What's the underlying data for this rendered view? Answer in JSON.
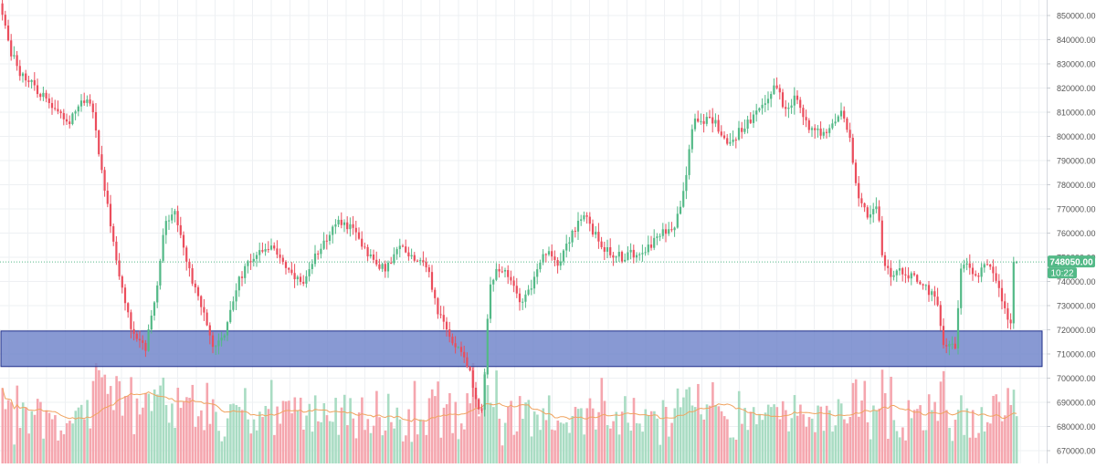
{
  "chart_data": {
    "type": "candlestick",
    "y_axis": {
      "position": "right",
      "ticks": [
        "850000.00",
        "840000.00",
        "830000.00",
        "820000.00",
        "810000.00",
        "800000.00",
        "790000.00",
        "780000.00",
        "770000.00",
        "760000.00",
        "750000.00",
        "740000.00",
        "730000.00",
        "720000.00",
        "710000.00",
        "700000.00",
        "690000.00",
        "680000.00",
        "670000.00"
      ],
      "ylim": [
        665000,
        855000
      ]
    },
    "grid": true,
    "current_price": {
      "value": 748050,
      "label": "748050.00",
      "countdown": "10:22"
    },
    "support_zone": {
      "low": 704800,
      "high": 719500
    },
    "colors": {
      "up": "#53b987",
      "down": "#eb4d5c",
      "volume_up": "#a9dcc3",
      "volume_down": "#f5a6ae",
      "volume_ma": "#f0a35f",
      "zone_fill": "#6e82c9",
      "zone_stroke": "#1f2f8a",
      "price_line": "#53b987",
      "grid": "#eef0f3",
      "axis_text": "#555555"
    },
    "anchors": [
      [
        0,
        855000
      ],
      [
        8,
        838000
      ],
      [
        20,
        826000
      ],
      [
        35,
        821000
      ],
      [
        50,
        815000
      ],
      [
        72,
        805000
      ],
      [
        88,
        815000
      ],
      [
        100,
        812000
      ],
      [
        115,
        775000
      ],
      [
        130,
        740000
      ],
      [
        145,
        718000
      ],
      [
        158,
        712000
      ],
      [
        170,
        735000
      ],
      [
        180,
        765000
      ],
      [
        190,
        770000
      ],
      [
        205,
        745000
      ],
      [
        220,
        728000
      ],
      [
        232,
        713000
      ],
      [
        245,
        719000
      ],
      [
        260,
        740000
      ],
      [
        275,
        750000
      ],
      [
        290,
        755000
      ],
      [
        305,
        751000
      ],
      [
        318,
        742000
      ],
      [
        332,
        738000
      ],
      [
        348,
        754000
      ],
      [
        360,
        760000
      ],
      [
        372,
        765000
      ],
      [
        388,
        760000
      ],
      [
        402,
        752000
      ],
      [
        414,
        745000
      ],
      [
        426,
        747000
      ],
      [
        438,
        755000
      ],
      [
        452,
        750000
      ],
      [
        465,
        748000
      ],
      [
        478,
        728000
      ],
      [
        492,
        716000
      ],
      [
        505,
        712000
      ],
      [
        515,
        700000
      ],
      [
        522,
        685000
      ],
      [
        528,
        690000
      ],
      [
        534,
        735000
      ],
      [
        545,
        746000
      ],
      [
        558,
        740000
      ],
      [
        570,
        732000
      ],
      [
        582,
        739000
      ],
      [
        596,
        752000
      ],
      [
        610,
        748000
      ],
      [
        625,
        760000
      ],
      [
        640,
        767000
      ],
      [
        652,
        758000
      ],
      [
        665,
        752000
      ],
      [
        680,
        750000
      ],
      [
        695,
        752000
      ],
      [
        710,
        755000
      ],
      [
        725,
        760000
      ],
      [
        740,
        765000
      ],
      [
        750,
        785000
      ],
      [
        758,
        808000
      ],
      [
        770,
        807000
      ],
      [
        782,
        806000
      ],
      [
        796,
        796000
      ],
      [
        810,
        803000
      ],
      [
        825,
        808000
      ],
      [
        838,
        815000
      ],
      [
        848,
        822000
      ],
      [
        858,
        812000
      ],
      [
        870,
        816000
      ],
      [
        882,
        805000
      ],
      [
        895,
        803000
      ],
      [
        905,
        800000
      ],
      [
        918,
        810000
      ],
      [
        928,
        803000
      ],
      [
        935,
        780000
      ],
      [
        948,
        768000
      ],
      [
        960,
        770000
      ],
      [
        965,
        748000
      ],
      [
        975,
        743000
      ],
      [
        990,
        744000
      ],
      [
        1005,
        740000
      ],
      [
        1018,
        735000
      ],
      [
        1025,
        730000
      ],
      [
        1032,
        715000
      ],
      [
        1045,
        713000
      ],
      [
        1050,
        743000
      ],
      [
        1060,
        748000
      ],
      [
        1070,
        740000
      ],
      [
        1078,
        750000
      ],
      [
        1088,
        743000
      ],
      [
        1098,
        730000
      ],
      [
        1105,
        722000
      ],
      [
        1112,
        748000
      ]
    ]
  }
}
